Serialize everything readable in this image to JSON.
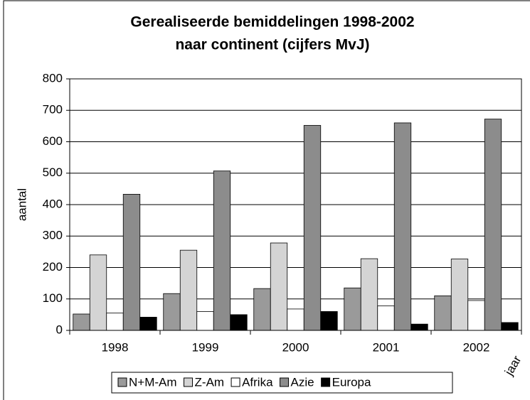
{
  "chart_data": {
    "type": "bar",
    "title": [
      "Gerealiseerde bemiddelingen 1998-2002",
      "naar continent (cijfers MvJ)"
    ],
    "y_label": "aantal",
    "x_label": "jaar",
    "categories": [
      "1998",
      "1999",
      "2000",
      "2001",
      "2002"
    ],
    "series": [
      {
        "name": "N+M-Am",
        "color": "#9a9a9a",
        "values": [
          52,
          117,
          133,
          135,
          110
        ]
      },
      {
        "name": "Z-Am",
        "color": "#d4d4d4",
        "values": [
          240,
          255,
          278,
          228,
          227
        ]
      },
      {
        "name": "Afrika",
        "color": "#ffffff",
        "values": [
          55,
          60,
          68,
          78,
          95
        ]
      },
      {
        "name": "Azie",
        "color": "#8c8c8c",
        "values": [
          433,
          507,
          652,
          660,
          672
        ]
      },
      {
        "name": "Europa",
        "color": "#000000",
        "values": [
          42,
          50,
          60,
          20,
          25
        ]
      }
    ],
    "ylim": [
      0,
      800
    ],
    "yticks": [
      0,
      100,
      200,
      300,
      400,
      500,
      600,
      700,
      800
    ],
    "grid": true
  }
}
